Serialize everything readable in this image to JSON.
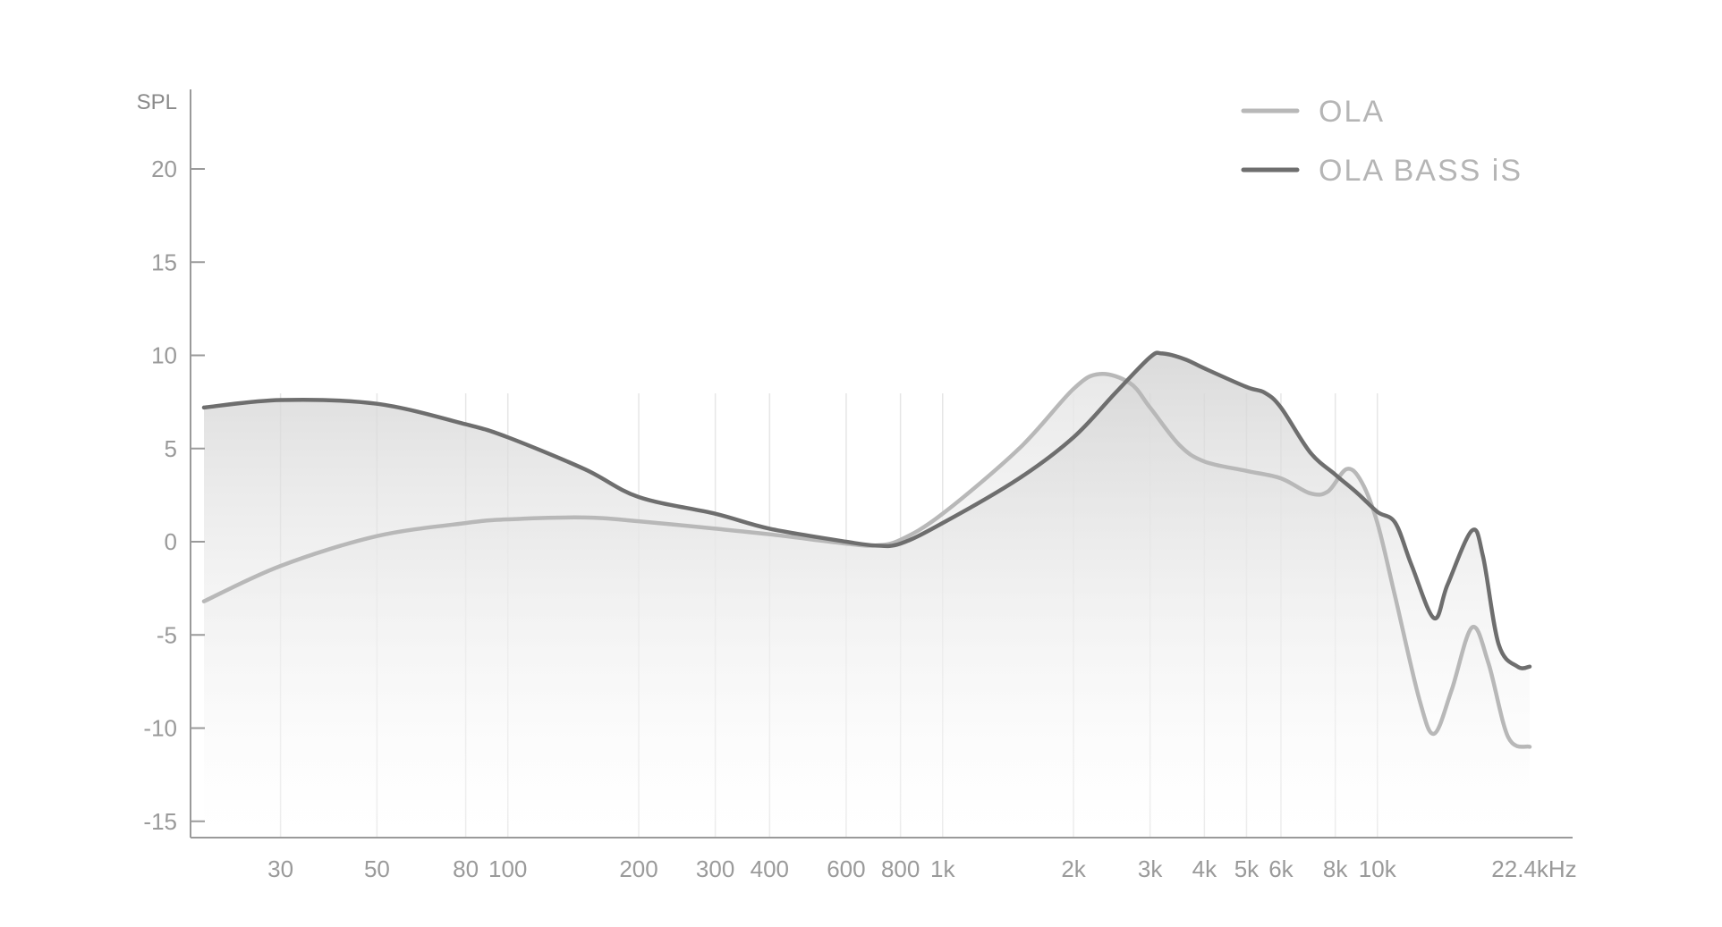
{
  "chart_data": {
    "type": "line",
    "xscale": "log",
    "ylabel": "SPL",
    "ylim": [
      -16,
      24
    ],
    "xlim": [
      20,
      23000
    ],
    "yticks": [
      20,
      15,
      10,
      5,
      0,
      -5,
      -10,
      -15
    ],
    "xticks": [
      {
        "value": 30,
        "label": "30"
      },
      {
        "value": 50,
        "label": "50"
      },
      {
        "value": 80,
        "label": "80"
      },
      {
        "value": 100,
        "label": "100"
      },
      {
        "value": 200,
        "label": "200"
      },
      {
        "value": 300,
        "label": "300"
      },
      {
        "value": 400,
        "label": "400"
      },
      {
        "value": 600,
        "label": "600"
      },
      {
        "value": 800,
        "label": "800"
      },
      {
        "value": 1000,
        "label": "1k"
      },
      {
        "value": 2000,
        "label": "2k"
      },
      {
        "value": 3000,
        "label": "3k"
      },
      {
        "value": 4000,
        "label": "4k"
      },
      {
        "value": 5000,
        "label": "5k"
      },
      {
        "value": 6000,
        "label": "6k"
      },
      {
        "value": 8000,
        "label": "8k"
      },
      {
        "value": 10000,
        "label": "10k"
      },
      {
        "value": 22400,
        "label": "22.4kHz"
      }
    ],
    "grid": "vertical",
    "legend": "top-right",
    "series": [
      {
        "name": "OLA",
        "color": "#b8b8b8",
        "points": [
          [
            20,
            -3.2
          ],
          [
            30,
            -1.3
          ],
          [
            50,
            0.3
          ],
          [
            80,
            1.0
          ],
          [
            100,
            1.2
          ],
          [
            150,
            1.3
          ],
          [
            200,
            1.1
          ],
          [
            300,
            0.7
          ],
          [
            400,
            0.4
          ],
          [
            600,
            -0.1
          ],
          [
            700,
            -0.2
          ],
          [
            800,
            0.1
          ],
          [
            1000,
            1.5
          ],
          [
            1500,
            5.0
          ],
          [
            2000,
            8.2
          ],
          [
            2300,
            9.0
          ],
          [
            2700,
            8.5
          ],
          [
            3000,
            7.2
          ],
          [
            3500,
            5.2
          ],
          [
            4000,
            4.3
          ],
          [
            5000,
            3.8
          ],
          [
            6000,
            3.4
          ],
          [
            7000,
            2.6
          ],
          [
            7700,
            2.7
          ],
          [
            8500,
            3.9
          ],
          [
            9200,
            3.2
          ],
          [
            10000,
            1.0
          ],
          [
            11000,
            -3.0
          ],
          [
            12500,
            -8.5
          ],
          [
            13500,
            -10.3
          ],
          [
            14800,
            -8.0
          ],
          [
            16500,
            -4.6
          ],
          [
            18000,
            -6.5
          ],
          [
            20000,
            -10.5
          ],
          [
            22400,
            -11.0
          ]
        ]
      },
      {
        "name": "OLA BASS iS",
        "color": "#6e6e6e",
        "points": [
          [
            20,
            7.2
          ],
          [
            30,
            7.6
          ],
          [
            50,
            7.4
          ],
          [
            80,
            6.3
          ],
          [
            100,
            5.6
          ],
          [
            150,
            3.9
          ],
          [
            200,
            2.4
          ],
          [
            300,
            1.5
          ],
          [
            400,
            0.7
          ],
          [
            600,
            0.0
          ],
          [
            700,
            -0.2
          ],
          [
            800,
            -0.1
          ],
          [
            1000,
            1.0
          ],
          [
            1500,
            3.4
          ],
          [
            2000,
            5.6
          ],
          [
            2500,
            8.0
          ],
          [
            3000,
            9.9
          ],
          [
            3200,
            10.1
          ],
          [
            3600,
            9.8
          ],
          [
            4000,
            9.3
          ],
          [
            5000,
            8.3
          ],
          [
            5500,
            8.0
          ],
          [
            6000,
            7.2
          ],
          [
            7000,
            4.8
          ],
          [
            8000,
            3.6
          ],
          [
            9000,
            2.6
          ],
          [
            10000,
            1.6
          ],
          [
            11000,
            1.0
          ],
          [
            12000,
            -1.3
          ],
          [
            13500,
            -4.1
          ],
          [
            14500,
            -2.3
          ],
          [
            16500,
            0.6
          ],
          [
            17500,
            -0.8
          ],
          [
            19000,
            -5.5
          ],
          [
            21000,
            -6.7
          ],
          [
            22400,
            -6.7
          ]
        ]
      }
    ]
  }
}
